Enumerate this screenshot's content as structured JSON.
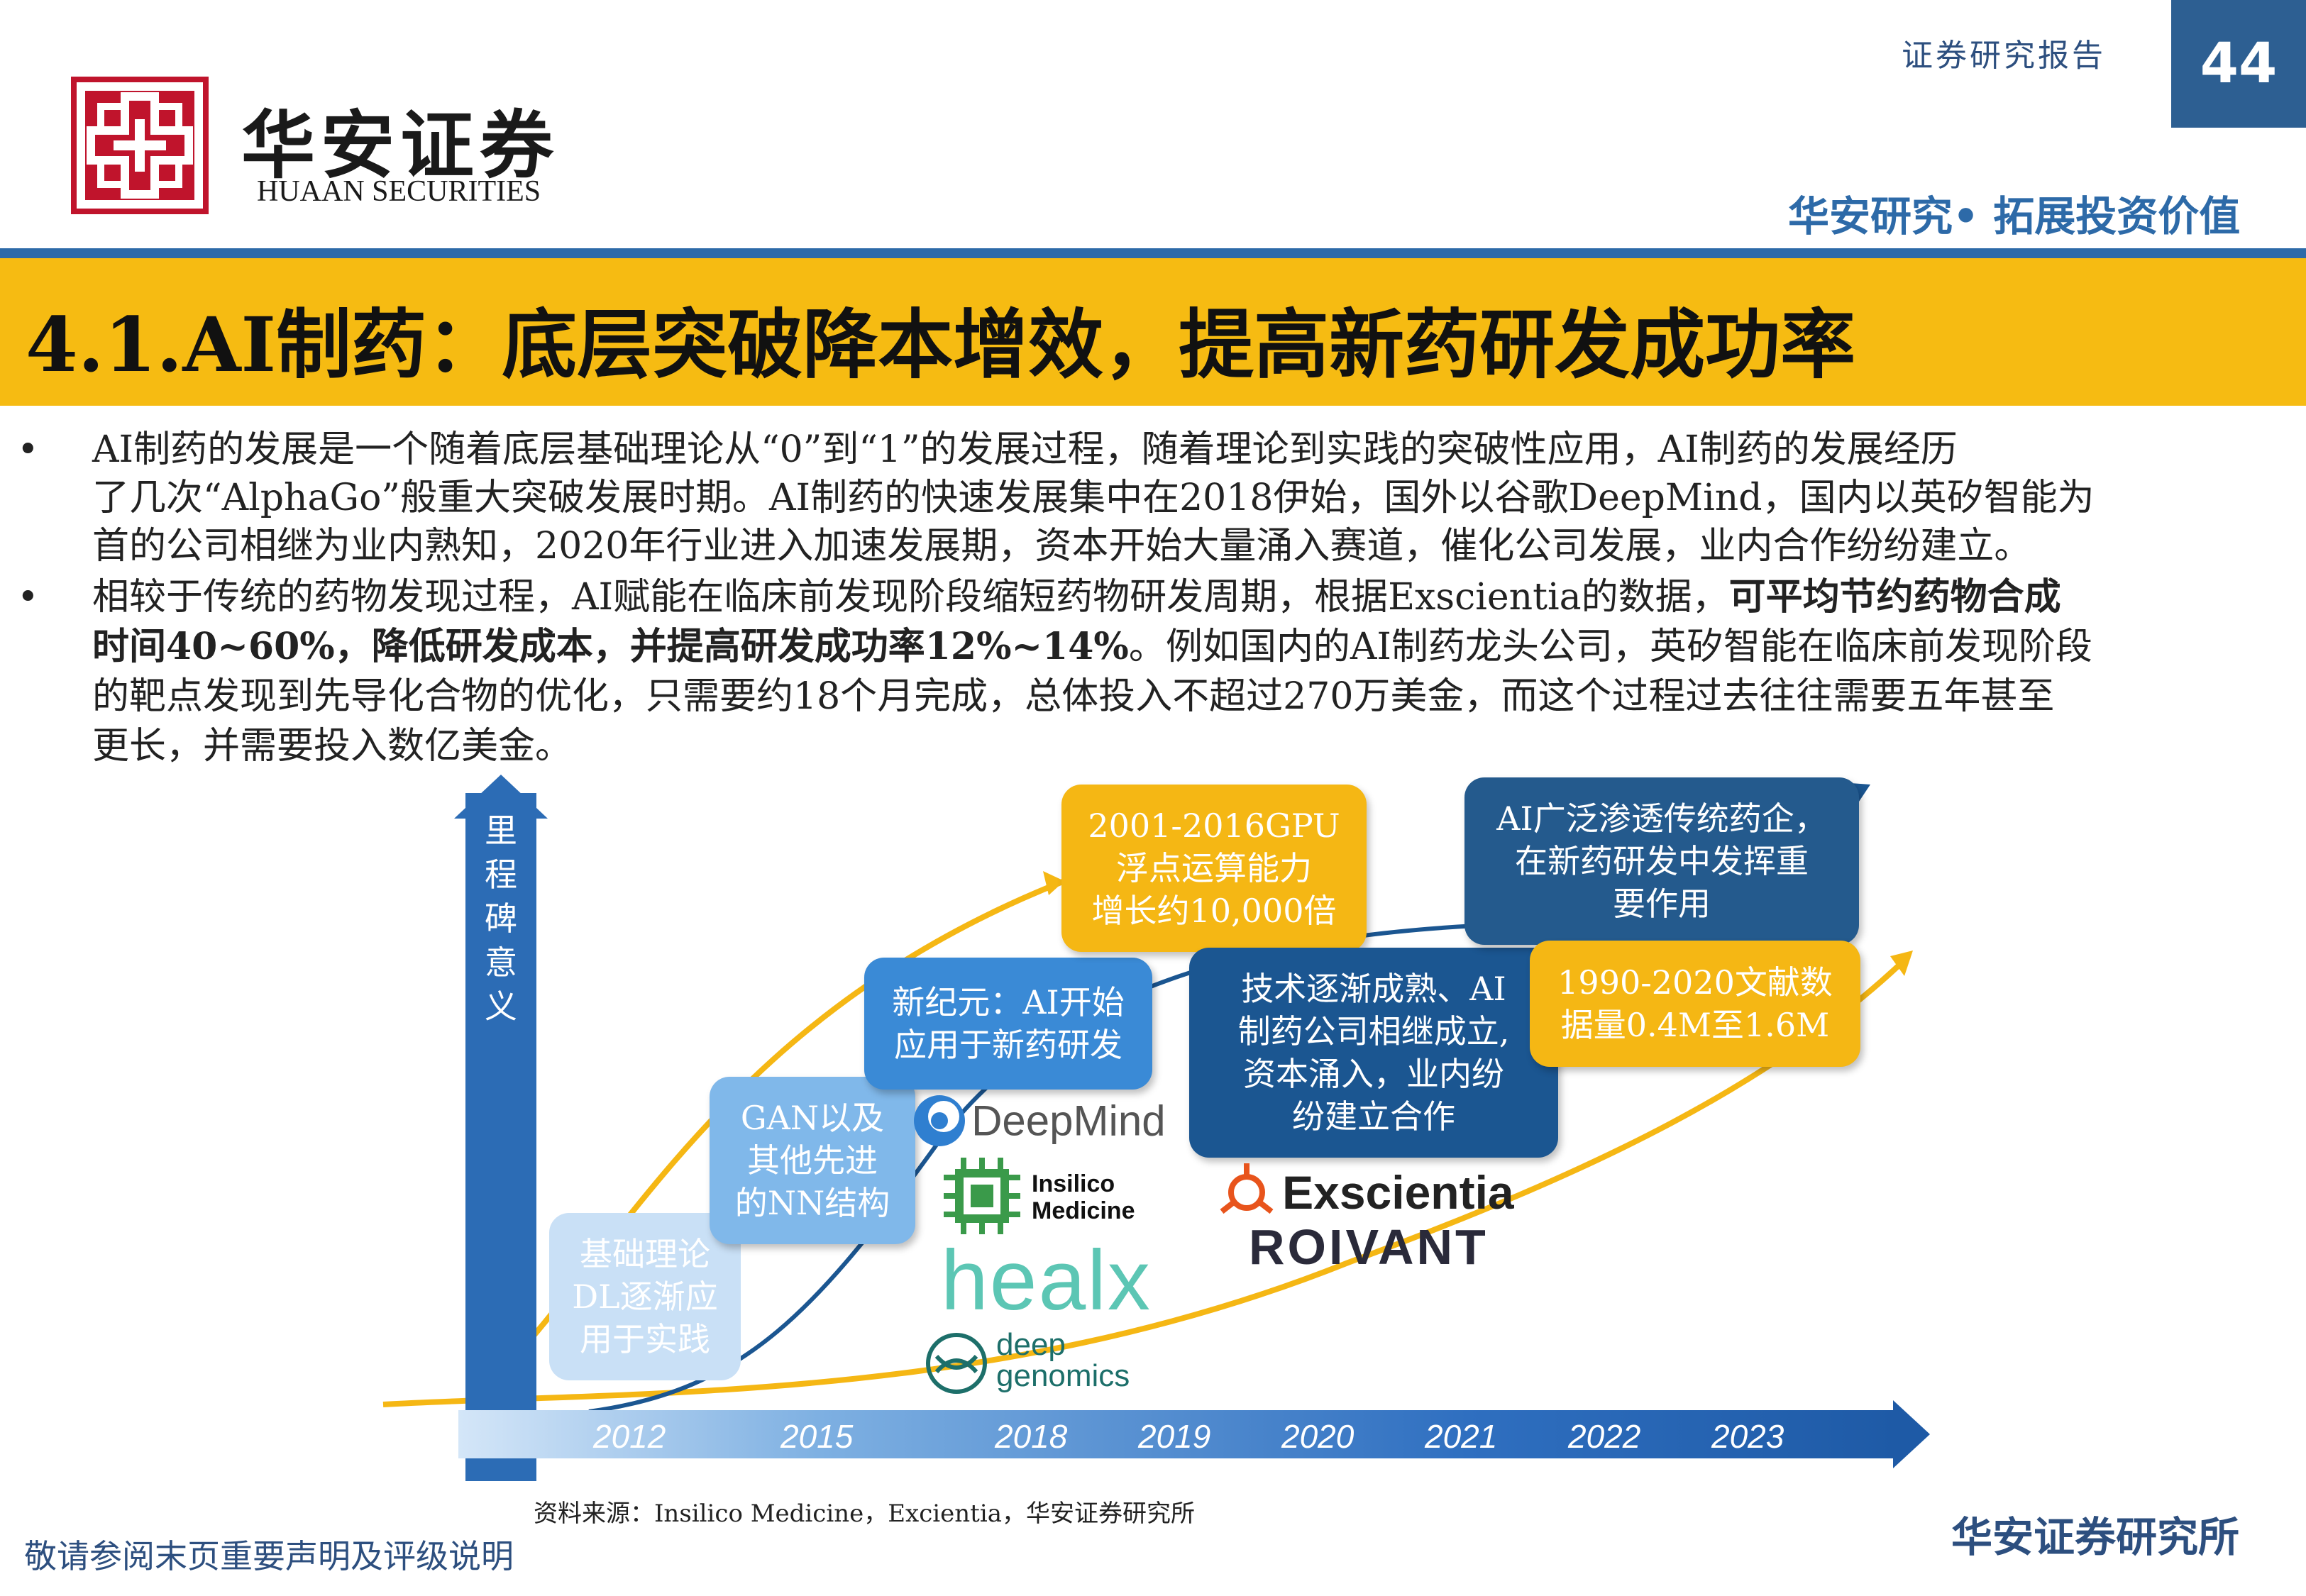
{
  "header": {
    "company_cn": "华安证券",
    "company_en": "HUAAN SECURITIES",
    "report_type": "证券研究报告",
    "page_number": "44",
    "slogan": "华安研究• 拓展投资价值"
  },
  "title": "4.1.AI制药：底层突破降本增效，提高新药研发成功率",
  "bullets": [
    {
      "marker": "•",
      "lines": [
        "AI制药的发展是一个随着底层基础理论从“0”到“1”的发展过程，随着理论到实践的突破性应用，AI制药的发展经历",
        "了几次“AlphaGo”般重大突破发展时期。AI制药的快速发展集中在2018伊始，国外以谷歌DeepMind，国内以英矽智能为",
        "首的公司相继为业内熟知，2020年行业进入加速发展期，资本开始大量涌入赛道，催化公司发展，业内合作纷纷建立。"
      ]
    },
    {
      "marker": "•",
      "line1_normal": "相较于传统的药物发现过程，AI赋能在临床前发现阶段缩短药物研发周期，根据Exscientia的数据，",
      "line1_bold": "可平均节约药物合成",
      "line2_bold": "时间40~60%，降低研发成本，并提高研发成功率12%~14%",
      "line2_normal": "。例如国内的AI制药龙头公司，英矽智能在临床前发现阶段",
      "line3": "的靶点发现到先导化合物的优化，只需要约18个月完成，总体投入不超过270万美金，而这个过程过去往往需要五年甚至",
      "line4": "更长，并需要投入数亿美金。"
    }
  ],
  "timeline": {
    "y_axis_label": "里程碑意义",
    "years": [
      "2012",
      "2015",
      "2018",
      "2019",
      "2020",
      "2021",
      "2022",
      "2023"
    ],
    "boxes": [
      {
        "id": "basic-theory",
        "lines": [
          "基础理论",
          "DL逐渐应",
          "用于实践"
        ]
      },
      {
        "id": "gan",
        "lines": [
          "GAN以及",
          "其他先进",
          "的NN结构"
        ]
      },
      {
        "id": "new-era",
        "lines": [
          "新纪元：AI开始",
          "应用于新药研发"
        ]
      },
      {
        "id": "gpu",
        "lines": [
          "2001-2016GPU",
          "浮点运算能力",
          "增长约10,000倍"
        ]
      },
      {
        "id": "mature",
        "lines": [
          "技术逐渐成熟、AI",
          "制药公司相继成立,",
          "资本涌入，业内纷",
          "纷建立合作"
        ]
      },
      {
        "id": "widespread",
        "lines": [
          "AI广泛渗透传统药企，",
          "在新药研发中发挥重",
          "要作用"
        ]
      },
      {
        "id": "literature",
        "lines": [
          "1990-2020文献数",
          "据量0.4M至1.6M"
        ]
      }
    ],
    "logos": {
      "deepmind": "DeepMind",
      "insilico_1": "Insilico",
      "insilico_2": "Medicine",
      "healx": "healx",
      "deep_genomics_1": "deep",
      "deep_genomics_2": "genomics",
      "exscientia": "Exscientia",
      "roivant": "ROIVANT"
    }
  },
  "footer": {
    "source": "资料来源：Insilico Medicine，Excientia，华安证券研究所",
    "disclaimer": "敬请参阅末页重要声明及评级说明",
    "institute": "华安证券研究所"
  },
  "colors": {
    "title_bar": "#f6bb12",
    "brand_blue": "#2d6aa8",
    "logo_red": "#c0142c",
    "box_yellow": "#f5b714",
    "box_navy": "#1b5691"
  }
}
